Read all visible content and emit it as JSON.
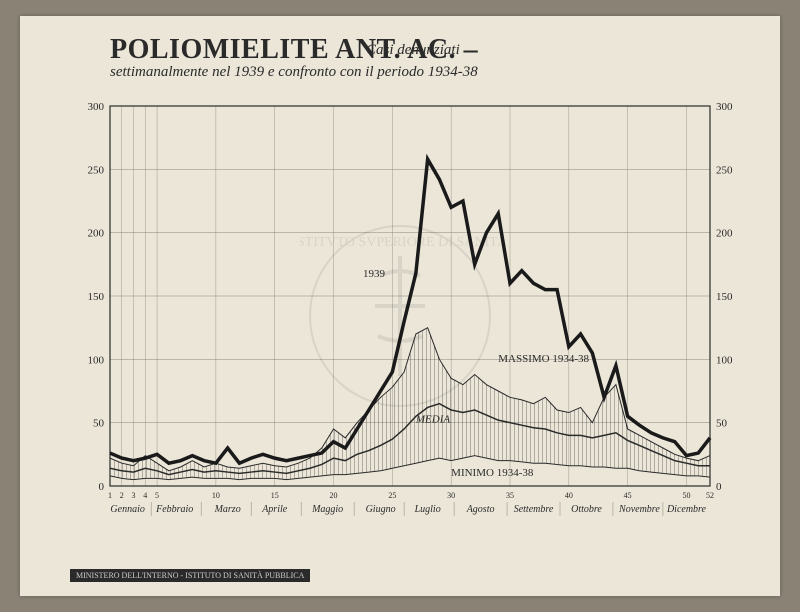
{
  "title_main": "POLIOMIELITE ANT. AC.",
  "title_dash": " – ",
  "subtitle_line1": "Casi denunziati",
  "subtitle_line2": "settimanalmente nel 1939 e confronto con il periodo 1934-38",
  "footer": "MINISTERO DELL'INTERNO - ISTITUTO DI SANITÀ PUBBLICA",
  "chart": {
    "type": "line",
    "xlim": [
      1,
      52
    ],
    "ylim": [
      0,
      300
    ],
    "ytick_step": 50,
    "yticks": [
      0,
      50,
      100,
      150,
      200,
      250,
      300
    ],
    "xticks_weeks": [
      1,
      2,
      3,
      4,
      5,
      10,
      15,
      20,
      25,
      30,
      35,
      40,
      45,
      50,
      52
    ],
    "month_labels": [
      "Gennaio",
      "Febbraio",
      "Marzo",
      "Aprile",
      "Maggio",
      "Giugno",
      "Luglio",
      "Agosto",
      "Settembre",
      "Ottobre",
      "Novembre",
      "Dicembre"
    ],
    "background_color": "#ebe6d8",
    "grid_color": "#8a8578",
    "axis_color": "#2a2a2a",
    "text_color": "#2a2a2a",
    "hatch_color": "#3a3a3a",
    "series": {
      "line_1939": {
        "label": "1939",
        "label_pos": {
          "week": 22.5,
          "y": 165
        },
        "color": "#1a1a1a",
        "width": 3.5,
        "data": [
          26,
          22,
          20,
          22,
          25,
          18,
          20,
          24,
          20,
          18,
          30,
          18,
          22,
          25,
          22,
          20,
          22,
          24,
          26,
          35,
          30,
          45,
          60,
          75,
          90,
          130,
          168,
          258,
          242,
          220,
          225,
          175,
          200,
          215,
          160,
          170,
          160,
          155,
          155,
          110,
          120,
          105,
          70,
          95,
          55,
          48,
          42,
          38,
          35,
          24,
          26,
          38
        ]
      },
      "massimo": {
        "label": "MASSIMO 1934-38",
        "label_pos": {
          "week": 34,
          "y": 98
        },
        "color": "#2a2a2a",
        "width": 1,
        "data": [
          22,
          18,
          16,
          24,
          18,
          12,
          15,
          20,
          15,
          18,
          15,
          14,
          16,
          18,
          16,
          15,
          18,
          22,
          30,
          45,
          38,
          50,
          60,
          70,
          78,
          90,
          120,
          125,
          100,
          85,
          80,
          88,
          80,
          75,
          70,
          68,
          65,
          70,
          60,
          58,
          62,
          50,
          70,
          80,
          45,
          40,
          35,
          30,
          25,
          22,
          20,
          24
        ]
      },
      "media": {
        "label": "MEDIA",
        "label_pos": {
          "week": 27,
          "y": 50
        },
        "color": "#2a2a2a",
        "width": 1.5,
        "font_style": "italic",
        "data": [
          14,
          12,
          11,
          14,
          12,
          9,
          11,
          13,
          11,
          12,
          11,
          10,
          11,
          12,
          11,
          10,
          12,
          14,
          17,
          22,
          20,
          25,
          28,
          32,
          37,
          45,
          55,
          62,
          65,
          60,
          58,
          60,
          56,
          52,
          50,
          48,
          46,
          45,
          42,
          40,
          40,
          38,
          40,
          42,
          36,
          32,
          28,
          24,
          20,
          18,
          16,
          16
        ]
      },
      "minimo": {
        "label": "MINIMO 1934-38",
        "label_pos": {
          "week": 30,
          "y": 8
        },
        "color": "#2a2a2a",
        "width": 1,
        "data": [
          8,
          6,
          5,
          6,
          6,
          5,
          6,
          7,
          6,
          6,
          6,
          5,
          6,
          6,
          6,
          5,
          6,
          7,
          8,
          9,
          9,
          10,
          11,
          12,
          14,
          16,
          18,
          20,
          22,
          20,
          22,
          24,
          22,
          20,
          20,
          19,
          18,
          18,
          17,
          16,
          16,
          15,
          15,
          14,
          14,
          12,
          11,
          10,
          9,
          8,
          8,
          7
        ]
      }
    }
  }
}
